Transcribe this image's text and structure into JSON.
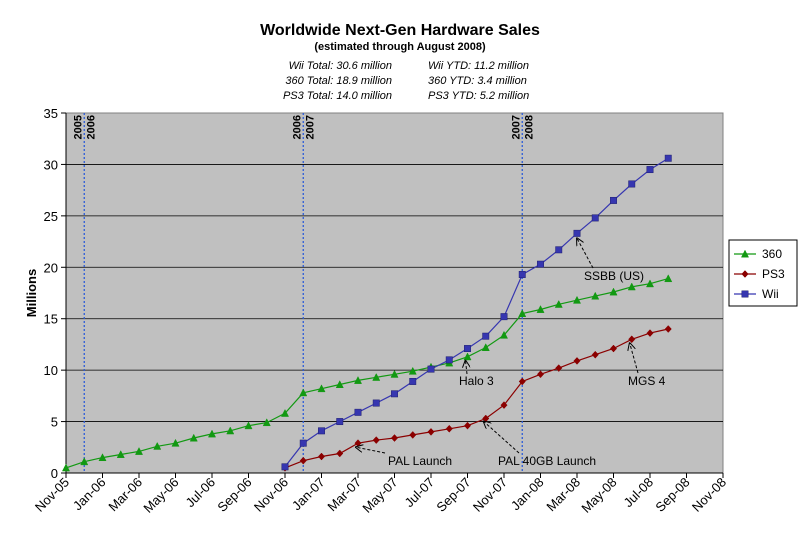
{
  "chart_data": {
    "type": "line",
    "title": "Worldwide Next-Gen Hardware Sales",
    "subtitle": "(estimated through August 2008)",
    "summary": [
      [
        "Wii Total:  30.6 million",
        "Wii YTD:  11.2 million"
      ],
      [
        "360 Total:  18.9 million",
        "360 YTD:  3.4 million"
      ],
      [
        "PS3 Total:  14.0 million",
        "PS3 YTD:  5.2 million"
      ]
    ],
    "ylabel": "Millions",
    "xlabel": "",
    "ylim": [
      0,
      35
    ],
    "yticks": [
      0,
      5,
      10,
      15,
      20,
      25,
      30,
      35
    ],
    "x_ticks": [
      "Nov-05",
      "Jan-06",
      "Mar-06",
      "May-06",
      "Jul-06",
      "Sep-06",
      "Nov-06",
      "Jan-07",
      "Mar-07",
      "May-07",
      "Jul-07",
      "Sep-07",
      "Nov-07",
      "Jan-08",
      "Mar-08",
      "May-08",
      "Jul-08",
      "Sep-08",
      "Nov-08"
    ],
    "grid": "horizontal",
    "legend_position": "right",
    "colors": {
      "plot_bg": "#c0c0c0",
      "360": "#129912",
      "PS3": "#8b0000",
      "Wii": "#3636b0",
      "divider": "#2b5bd8"
    },
    "year_markers": [
      {
        "month_index": 2,
        "labels": [
          "2005",
          "2006"
        ]
      },
      {
        "month_index": 14,
        "labels": [
          "2006",
          "2007"
        ]
      },
      {
        "month_index": 26,
        "labels": [
          "2007",
          "2008"
        ]
      }
    ],
    "series": [
      {
        "name": "360",
        "marker": "triangle",
        "start_month_index": 0,
        "values": [
          0.5,
          1.1,
          1.5,
          1.8,
          2.1,
          2.6,
          2.9,
          3.4,
          3.8,
          4.1,
          4.6,
          4.9,
          5.8,
          7.8,
          8.2,
          8.6,
          9.0,
          9.3,
          9.6,
          9.9,
          10.3,
          10.7,
          11.3,
          12.2,
          13.4,
          15.5,
          15.9,
          16.4,
          16.8,
          17.2,
          17.6,
          18.1,
          18.4,
          18.9
        ]
      },
      {
        "name": "PS3",
        "marker": "diamond",
        "start_month_index": 12,
        "values": [
          0.5,
          1.2,
          1.6,
          1.9,
          2.9,
          3.2,
          3.4,
          3.7,
          4.0,
          4.3,
          4.6,
          5.3,
          6.6,
          8.9,
          9.6,
          10.2,
          10.9,
          11.5,
          12.1,
          13.0,
          13.6,
          14.0
        ]
      },
      {
        "name": "Wii",
        "marker": "square",
        "start_month_index": 12,
        "values": [
          0.6,
          2.9,
          4.1,
          5.0,
          5.9,
          6.8,
          7.7,
          8.9,
          10.1,
          11.0,
          12.1,
          13.3,
          15.2,
          19.3,
          20.3,
          21.7,
          23.3,
          24.8,
          26.5,
          28.1,
          29.5,
          30.6
        ]
      }
    ],
    "annotations": [
      {
        "text": "SSBB (US)",
        "series": "Wii",
        "month_index": 28
      },
      {
        "text": "Halo 3",
        "series": "360",
        "month_index": 22
      },
      {
        "text": "MGS 4",
        "series": "PS3",
        "month_index": 31
      },
      {
        "text": "PAL Launch",
        "series": "PS3",
        "month_index": 16
      },
      {
        "text": "PAL 40GB  Launch",
        "series": "PS3",
        "month_index": 23
      }
    ]
  }
}
